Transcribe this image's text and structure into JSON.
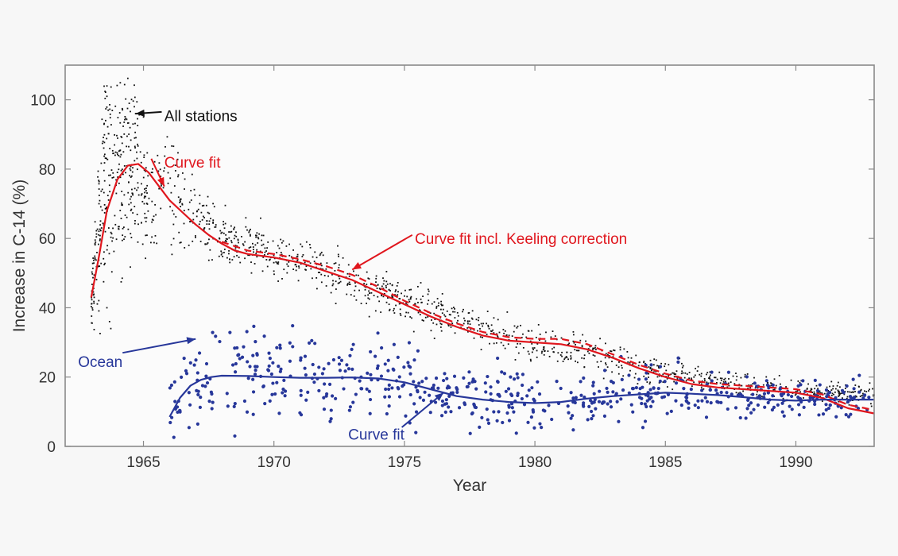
{
  "chart_data": {
    "type": "scatter",
    "title": "",
    "xlabel": "Year",
    "ylabel": "Increase in C-14 (%)",
    "xlim": [
      1962,
      1993
    ],
    "ylim": [
      0,
      110
    ],
    "xticks": [
      1965,
      1970,
      1975,
      1980,
      1985,
      1990
    ],
    "yticks": [
      0,
      20,
      40,
      60,
      80,
      100
    ],
    "grid": false,
    "legend": "none (inline annotations)",
    "colors": {
      "stations": "#111111",
      "fit_red": "#e0161d",
      "ocean": "#27379a",
      "axis": "#8a8a8a"
    },
    "series": [
      {
        "name": "All stations",
        "kind": "scatter",
        "color": "#111111",
        "description": "Dense atmospheric measurements; peaks ~104 (1963.6) and ~98 (1964.7), declining to ~15 by 1993",
        "envelope": [
          {
            "x": 1963.0,
            "y": 42,
            "spread": 4
          },
          {
            "x": 1963.3,
            "y": 60,
            "spread": 12
          },
          {
            "x": 1963.6,
            "y": 85,
            "spread": 18
          },
          {
            "x": 1964.0,
            "y": 78,
            "spread": 14
          },
          {
            "x": 1964.6,
            "y": 85,
            "spread": 14
          },
          {
            "x": 1965.0,
            "y": 76,
            "spread": 10
          },
          {
            "x": 1966.0,
            "y": 73,
            "spread": 8
          },
          {
            "x": 1967.0,
            "y": 67,
            "spread": 5
          },
          {
            "x": 1968.0,
            "y": 60,
            "spread": 4
          },
          {
            "x": 1970.0,
            "y": 55,
            "spread": 3
          },
          {
            "x": 1972.0,
            "y": 51,
            "spread": 3
          },
          {
            "x": 1974.0,
            "y": 45,
            "spread": 3
          },
          {
            "x": 1976.0,
            "y": 39,
            "spread": 3
          },
          {
            "x": 1978.0,
            "y": 34,
            "spread": 2.5
          },
          {
            "x": 1980.0,
            "y": 30,
            "spread": 2.5
          },
          {
            "x": 1982.0,
            "y": 27,
            "spread": 2.5
          },
          {
            "x": 1984.0,
            "y": 23,
            "spread": 2
          },
          {
            "x": 1986.0,
            "y": 20,
            "spread": 2
          },
          {
            "x": 1988.0,
            "y": 18,
            "spread": 1.5
          },
          {
            "x": 1990.0,
            "y": 16,
            "spread": 1.5
          },
          {
            "x": 1993.0,
            "y": 14.5,
            "spread": 1.5
          }
        ]
      },
      {
        "name": "Curve fit",
        "kind": "line",
        "style": "solid",
        "color": "#e0161d",
        "x": [
          1963.0,
          1963.3,
          1963.6,
          1964.0,
          1964.4,
          1964.8,
          1965.2,
          1965.6,
          1966.0,
          1966.5,
          1967.0,
          1967.5,
          1968.0,
          1968.5,
          1969.0,
          1970.0,
          1971.0,
          1972.0,
          1973.0,
          1974.0,
          1975.0,
          1976.0,
          1977.0,
          1978.0,
          1979.0,
          1980.0,
          1981.0,
          1982.0,
          1983.0,
          1984.0,
          1985.0,
          1986.0,
          1987.0,
          1988.0,
          1989.0,
          1990.0,
          1991.0,
          1992.0,
          1993.0
        ],
        "y": [
          43,
          55,
          68,
          77,
          81,
          81.5,
          79,
          75,
          71,
          67.5,
          64,
          61,
          58.5,
          56.5,
          55.5,
          54.5,
          53,
          50.5,
          48,
          44.5,
          41,
          37.5,
          34.5,
          32,
          30.5,
          30,
          29.5,
          28,
          25.5,
          22.5,
          20,
          18,
          17,
          16.5,
          16,
          15.5,
          14,
          11,
          9.5
        ]
      },
      {
        "name": "Curve fit incl. Keeling correction",
        "kind": "line",
        "style": "dashed",
        "color": "#e0161d",
        "x": [
          1968.0,
          1969.0,
          1970.0,
          1971.0,
          1972.0,
          1973.0,
          1974.0,
          1975.0,
          1976.0,
          1977.0,
          1978.0,
          1979.0,
          1980.0,
          1981.0,
          1982.0,
          1983.0,
          1984.0,
          1985.0,
          1986.0,
          1987.0,
          1988.0,
          1989.0,
          1990.0,
          1991.0,
          1992.0,
          1993.0
        ],
        "y": [
          59,
          56.5,
          55.5,
          54,
          52,
          49.5,
          46,
          42,
          38.5,
          35.5,
          33,
          31.5,
          31,
          31,
          29.5,
          26.5,
          23.5,
          21,
          19,
          18,
          17.5,
          17,
          16.5,
          15,
          12,
          10.5
        ]
      },
      {
        "name": "Ocean",
        "kind": "scatter",
        "color": "#27379a",
        "description": "Sparse ocean measurements from 1966 onward, mostly 5-35%",
        "envelope": [
          {
            "x": 1966.0,
            "y": 12,
            "spread": 5
          },
          {
            "x": 1967.0,
            "y": 19,
            "spread": 8
          },
          {
            "x": 1968.0,
            "y": 21,
            "spread": 8
          },
          {
            "x": 1970.0,
            "y": 20,
            "spread": 7
          },
          {
            "x": 1972.0,
            "y": 20,
            "spread": 6
          },
          {
            "x": 1974.0,
            "y": 20,
            "spread": 6
          },
          {
            "x": 1976.0,
            "y": 17,
            "spread": 5
          },
          {
            "x": 1978.0,
            "y": 14,
            "spread": 5
          },
          {
            "x": 1980.0,
            "y": 13,
            "spread": 4
          },
          {
            "x": 1982.0,
            "y": 14,
            "spread": 4
          },
          {
            "x": 1984.0,
            "y": 15.5,
            "spread": 4
          },
          {
            "x": 1986.0,
            "y": 15,
            "spread": 3.5
          },
          {
            "x": 1988.0,
            "y": 14,
            "spread": 3
          },
          {
            "x": 1990.0,
            "y": 14,
            "spread": 3
          },
          {
            "x": 1993.0,
            "y": 13.5,
            "spread": 3
          }
        ]
      },
      {
        "name": "Ocean curve fit",
        "kind": "line",
        "style": "solid",
        "color": "#27379a",
        "x": [
          1966.0,
          1966.4,
          1966.8,
          1967.2,
          1967.6,
          1968.0,
          1969.0,
          1970.0,
          1971.0,
          1972.0,
          1973.0,
          1974.0,
          1975.0,
          1976.0,
          1977.0,
          1978.0,
          1979.0,
          1980.0,
          1981.0,
          1982.0,
          1983.0,
          1984.0,
          1985.0,
          1986.0,
          1987.0,
          1988.0,
          1989.0,
          1990.0,
          1991.0,
          1992.0,
          1993.0
        ],
        "y": [
          8.5,
          14,
          17.5,
          19.2,
          20,
          20.4,
          20.3,
          20.0,
          19.8,
          19.8,
          19.9,
          19.6,
          18.5,
          16.5,
          14.5,
          13.5,
          12.8,
          12.5,
          12.8,
          13.8,
          14.5,
          15.0,
          15.5,
          15.2,
          14.8,
          14.2,
          13.5,
          13.2,
          13.5,
          13.5,
          13.5
        ]
      }
    ],
    "annotations": [
      {
        "text": "All stations",
        "color": "#111111",
        "points_to": {
          "x": 1964.7,
          "y": 96
        }
      },
      {
        "text": "Curve fit",
        "color": "#e0161d",
        "points_to": {
          "x": 1965.8,
          "y": 75
        }
      },
      {
        "text": "Curve fit incl. Keeling correction",
        "color": "#e0161d",
        "points_to": {
          "x": 1973.0,
          "y": 51
        }
      },
      {
        "text": "Ocean",
        "color": "#27379a",
        "points_to": {
          "x": 1967.0,
          "y": 31
        }
      },
      {
        "text": "Curve fit",
        "color": "#27379a",
        "points_to": {
          "x": 1976.5,
          "y": 15.5
        }
      }
    ]
  }
}
